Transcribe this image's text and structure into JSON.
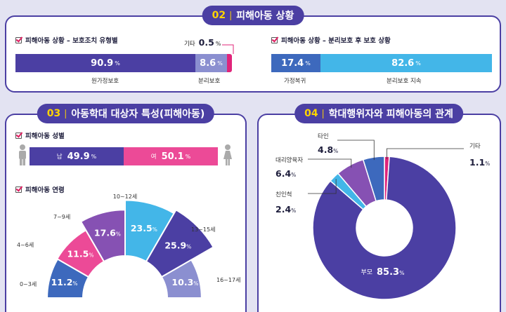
{
  "sec02": {
    "num": "02",
    "title": "피해아동 상황",
    "left_sub": "피해아동 상황 – 보호조치 유형별",
    "right_sub": "피해아동 상황 – 분리보호 후 보호 상황"
  },
  "sec03": {
    "num": "03",
    "title": "아동학대 대상자 특성(피해아동)",
    "gender_sub": "피해아동 성별",
    "age_sub": "피해아동 연령"
  },
  "sec04": {
    "num": "04",
    "title": "학대행위자와 피해아동의 관계"
  },
  "percent_sign": "%",
  "colors": {
    "navy": "#4b3fa3",
    "blue": "#3d69bd",
    "sky": "#43b6e8",
    "pink": "#ec4a97",
    "purple": "#8651b3",
    "lavender": "#8b8fd0",
    "magenta": "#e0247a"
  },
  "chart_data": [
    {
      "type": "bar",
      "orientation": "horizontal",
      "stacked": true,
      "categories": [
        "원가정보호",
        "분리보호",
        "기타"
      ],
      "values": [
        90.9,
        8.6,
        0.5
      ]
    },
    {
      "type": "bar",
      "orientation": "horizontal",
      "stacked": true,
      "categories": [
        "가정복귀",
        "분리보호 지속"
      ],
      "values": [
        17.4,
        82.6
      ]
    },
    {
      "type": "bar",
      "orientation": "horizontal",
      "stacked": true,
      "categories": [
        "남",
        "여"
      ],
      "values": [
        49.9,
        50.1
      ]
    },
    {
      "type": "pie",
      "layout": "half-donut",
      "categories": [
        "0~3세",
        "4~6세",
        "7~9세",
        "10~12세",
        "13~15세",
        "16~17세"
      ],
      "values": [
        11.2,
        11.5,
        17.6,
        23.5,
        25.9,
        10.3
      ]
    },
    {
      "type": "pie",
      "layout": "donut",
      "categories": [
        "부모",
        "친인척",
        "대리양육자",
        "타인",
        "기타"
      ],
      "values": [
        85.3,
        2.4,
        6.4,
        4.8,
        1.1
      ]
    }
  ]
}
